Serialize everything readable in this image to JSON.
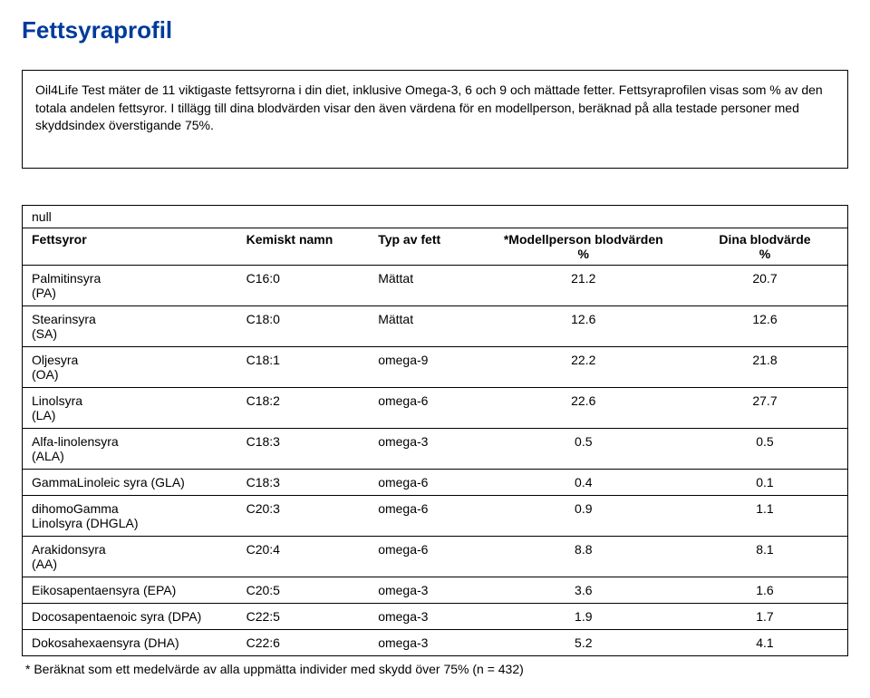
{
  "title": "Fettsyraprofil",
  "intro": "Oil4Life Test mäter de 11 viktigaste fettsyrorna i din diet, inklusive Omega-3, 6 och 9 och mättade fetter. Fettsyraprofilen visas som % av den totala andelen fettsyror. I tillägg till dina blodvärden visar den även värdena för en modellperson, beräknad på alla testade personer med skyddsindex överstigande 75%.",
  "null_label": "null",
  "headers": {
    "name": "Fettsyror",
    "chem": "Kemiskt namn",
    "type": "Typ av fett",
    "model": "*Modellperson blodvärden",
    "model_sub": "%",
    "yours": "Dina blodvärde",
    "yours_sub": "%"
  },
  "rows": [
    {
      "name": "Palmitinsyra",
      "sub": "(PA)",
      "chem": "C16:0",
      "type": "Mättat",
      "model": "21.2",
      "yours": "20.7"
    },
    {
      "name": "Stearinsyra",
      "sub": "(SA)",
      "chem": "C18:0",
      "type": "Mättat",
      "model": "12.6",
      "yours": "12.6"
    },
    {
      "name": "Oljesyra",
      "sub": "(OA)",
      "chem": "C18:1",
      "type": "omega-9",
      "model": "22.2",
      "yours": "21.8"
    },
    {
      "name": "Linolsyra",
      "sub": "(LA)",
      "chem": "C18:2",
      "type": "omega-6",
      "model": "22.6",
      "yours": "27.7"
    },
    {
      "name": "Alfa-linolensyra",
      "sub": "(ALA)",
      "chem": "C18:3",
      "type": "omega-3",
      "model": "0.5",
      "yours": "0.5"
    },
    {
      "name": "GammaLinoleic syra (GLA)",
      "sub": "",
      "chem": "C18:3",
      "type": "omega-6",
      "model": "0.4",
      "yours": "0.1"
    },
    {
      "name": "dihomoGamma",
      "sub": "Linolsyra (DHGLA)",
      "chem": "C20:3",
      "type": "omega-6",
      "model": "0.9",
      "yours": "1.1"
    },
    {
      "name": "Arakidonsyra",
      "sub": "(AA)",
      "chem": "C20:4",
      "type": "omega-6",
      "model": "8.8",
      "yours": "8.1"
    },
    {
      "name": "Eikosapentaensyra (EPA)",
      "sub": "",
      "chem": "C20:5",
      "type": "omega-3",
      "model": "3.6",
      "yours": "1.6"
    },
    {
      "name": "Docosapentaenoic syra (DPA)",
      "sub": "",
      "chem": "C22:5",
      "type": "omega-3",
      "model": "1.9",
      "yours": "1.7"
    },
    {
      "name": "Dokosahexaensyra (DHA)",
      "sub": "",
      "chem": "C22:6",
      "type": "omega-3",
      "model": "5.2",
      "yours": "4.1"
    }
  ],
  "footnote": "* Beräknat som ett medelvärde av alla uppmätta individer med skydd över 75% (n = 432)",
  "colors": {
    "title": "#003a9c",
    "text": "#000000",
    "border": "#000000",
    "background": "#ffffff"
  },
  "fonts": {
    "family": "Arial",
    "title_size_pt": 20,
    "body_size_pt": 11
  }
}
